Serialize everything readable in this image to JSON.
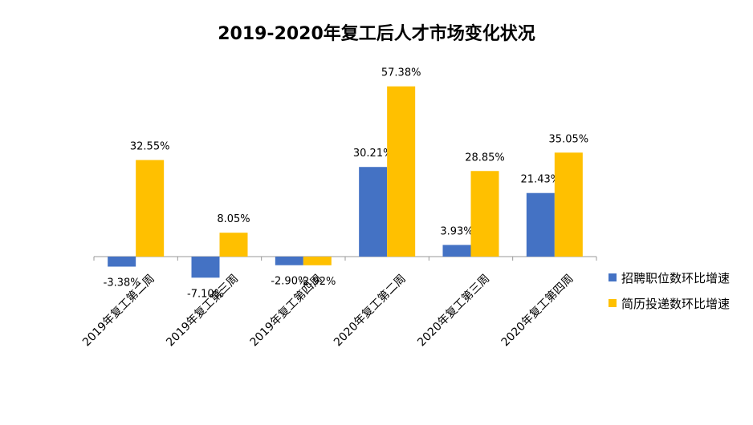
{
  "chart_data": {
    "type": "bar",
    "title": "2019-2020年复工后人才市场变化状况",
    "categories": [
      "2019年复工第二周",
      "2019年复工第三周",
      "2019年复工第四周",
      "2020年复工第二周",
      "2020年复工第三周",
      "2020年复工第四周"
    ],
    "series": [
      {
        "name": "招聘职位数环比增速",
        "color": "#4472C4",
        "values": [
          -3.38,
          -7.1,
          -2.9,
          30.21,
          3.93,
          21.43
        ],
        "labels": [
          "-3.38%",
          "-7.10%",
          "-2.90%",
          "30.21%",
          "3.93%",
          "21.43%"
        ]
      },
      {
        "name": "简历投递数环比增速",
        "color": "#FFC000",
        "values": [
          32.55,
          8.05,
          -2.92,
          57.38,
          28.85,
          35.05
        ],
        "labels": [
          "32.55%",
          "8.05%",
          "-2.92%",
          "57.38%",
          "28.85%",
          "35.05%"
        ]
      }
    ],
    "ylim": [
      -10,
      60
    ],
    "grid": false,
    "legend": "right"
  }
}
